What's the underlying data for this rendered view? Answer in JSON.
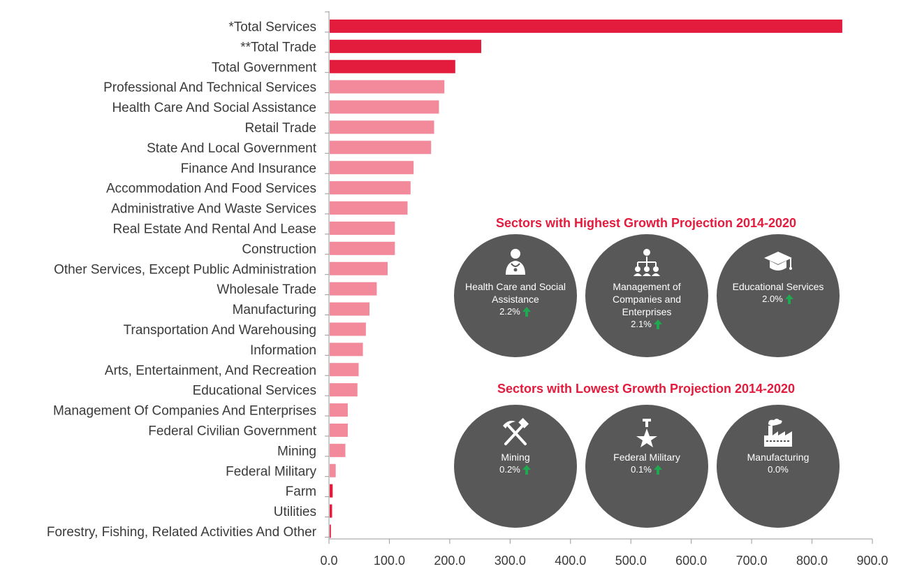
{
  "chart_data": {
    "type": "bar",
    "orientation": "horizontal",
    "categories": [
      "*Total Services",
      "**Total Trade",
      "Total Government",
      "Professional And Technical Services",
      "Health Care And Social Assistance",
      "Retail Trade",
      "State And Local Government",
      "Finance And Insurance",
      "Accommodation And Food Services",
      "Administrative And Waste Services",
      "Real Estate And Rental And Lease",
      "Construction",
      "Other Services, Except Public Administration",
      "Wholesale Trade",
      "Manufacturing",
      "Transportation And Warehousing",
      "Information",
      "Arts, Entertainment, And Recreation",
      "Educational Services",
      "Management Of Companies And Enterprises",
      "Federal Civilian Government",
      "Mining",
      "Federal Military",
      "Farm",
      "Utilities",
      "Forestry, Fishing, Related Activities And Other"
    ],
    "values": [
      849,
      251,
      208,
      190,
      181,
      173,
      168,
      139,
      134,
      129,
      108,
      108,
      96,
      78,
      66,
      60,
      55,
      48,
      46,
      30,
      30,
      26,
      10,
      5,
      4,
      2
    ],
    "highlight": [
      true,
      true,
      true,
      false,
      false,
      false,
      false,
      false,
      false,
      false,
      false,
      false,
      false,
      false,
      false,
      false,
      false,
      false,
      false,
      false,
      false,
      false,
      false,
      true,
      true,
      true
    ],
    "xlim": [
      0,
      900
    ],
    "xticks": [
      "0.0",
      "100.0",
      "200.0",
      "300.0",
      "400.0",
      "500.0",
      "600.0",
      "700.0",
      "800.0",
      "900.0"
    ],
    "colors": {
      "dark": "#e31b3d",
      "light": "#f28a9b",
      "axis": "#9a9a9a"
    },
    "grid": false
  },
  "panels": {
    "highest": {
      "title": "Sectors with Highest Growth Projection 2014-2020",
      "items": [
        {
          "icon": "doctor-icon",
          "name": "Health Care and Social Assistance",
          "pct": "2.2%",
          "arrow": true
        },
        {
          "icon": "org-chart-icon",
          "name": "Management of Companies and Enterprises",
          "pct": "2.1%",
          "arrow": true
        },
        {
          "icon": "graduation-cap-icon",
          "name": "Educational Services",
          "pct": "2.0%",
          "arrow": true
        }
      ]
    },
    "lowest": {
      "title": "Sectors with Lowest Growth Projection 2014-2020",
      "items": [
        {
          "icon": "pickaxe-hammer-icon",
          "name": "Mining",
          "pct": "0.2%",
          "arrow": true
        },
        {
          "icon": "medal-icon",
          "name": "Federal Military",
          "pct": "0.1%",
          "arrow": true
        },
        {
          "icon": "factory-icon",
          "name": "Manufacturing",
          "pct": "0.0%",
          "arrow": false
        }
      ]
    },
    "arrow_color": "#1fa84f"
  }
}
